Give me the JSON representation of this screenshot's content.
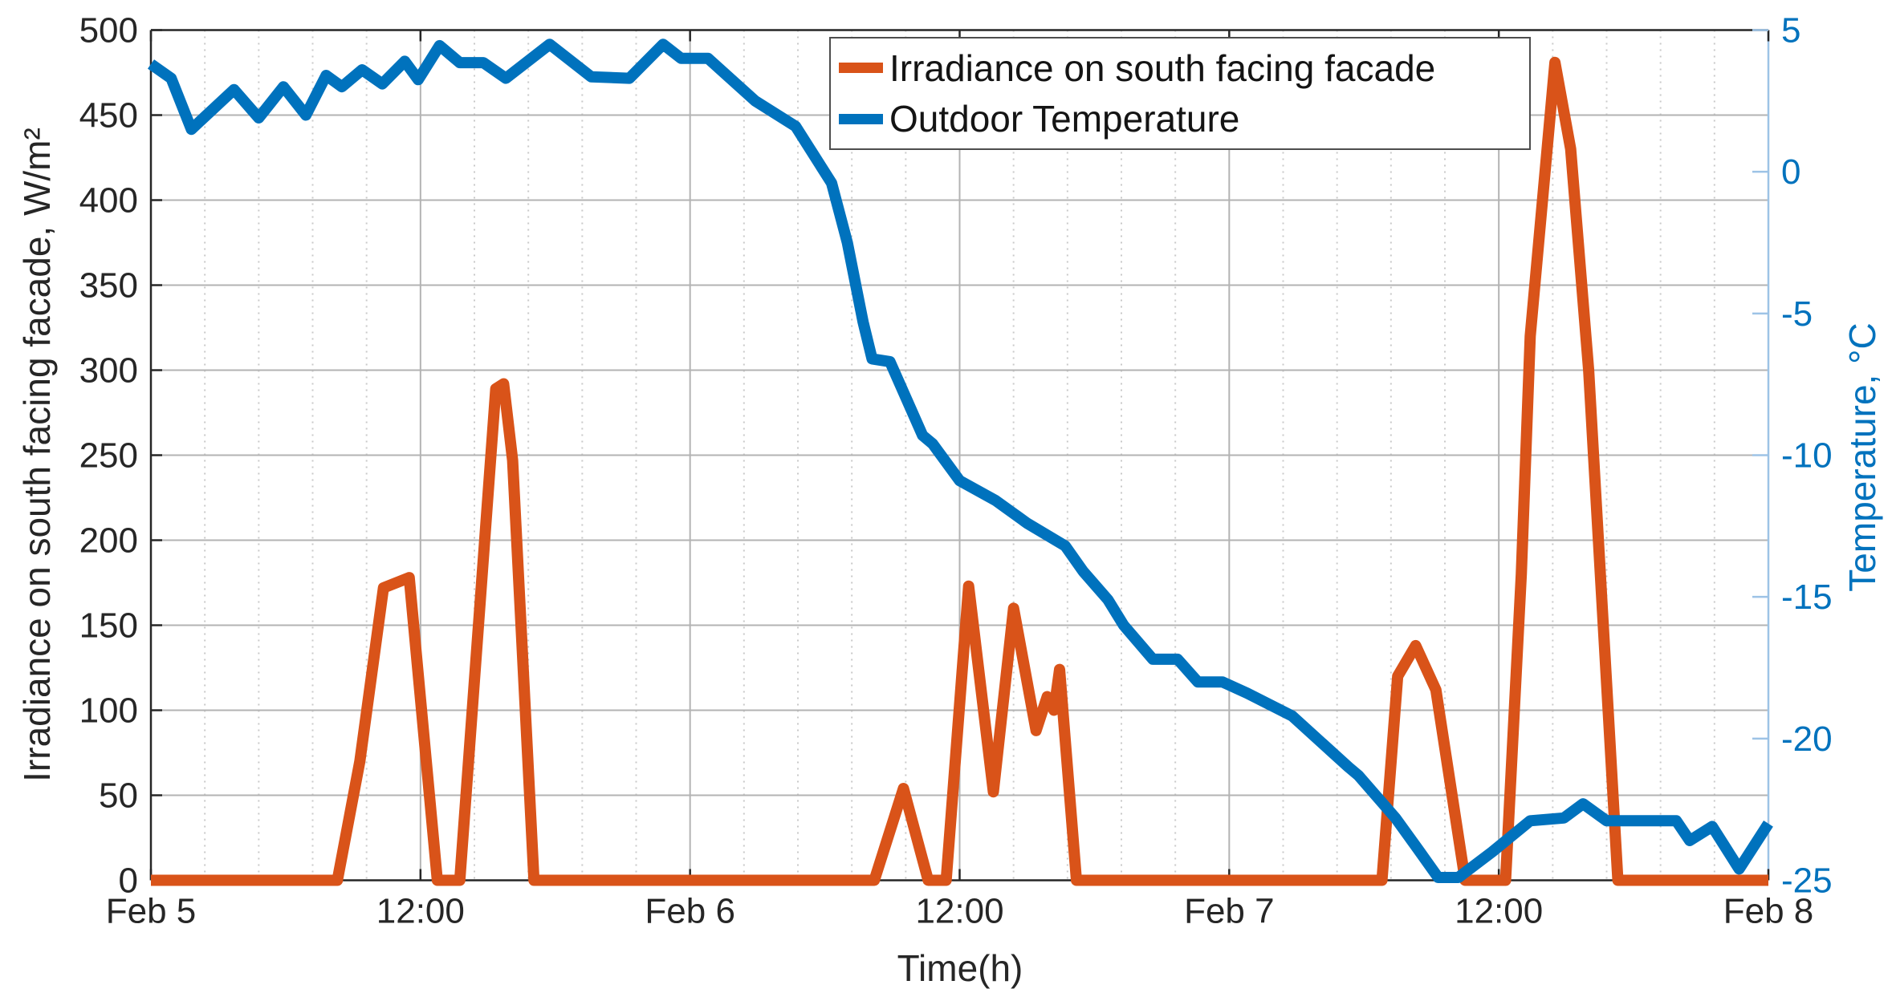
{
  "chart_data": {
    "type": "line",
    "title": "",
    "x_axis": {
      "label": "Time(h)",
      "range_hours": [
        0,
        72
      ],
      "tick_labels": [
        {
          "t": 0,
          "label": "Feb 5"
        },
        {
          "t": 12,
          "label": "12:00"
        },
        {
          "t": 24,
          "label": "Feb 6"
        },
        {
          "t": 36,
          "label": "12:00"
        },
        {
          "t": 48,
          "label": "Feb 7"
        },
        {
          "t": 60,
          "label": "12:00"
        },
        {
          "t": 72,
          "label": "Feb 8"
        }
      ],
      "minor_grid_step_hours": 2.4
    },
    "left_axis": {
      "label": "Irradiance on south facing facade, W/m²",
      "min": 0,
      "max": 500,
      "tick_step": 50,
      "color": "#262626"
    },
    "right_axis": {
      "label": "Temperature, °C",
      "min": -25,
      "max": 5,
      "tick_step": 5,
      "label_color": "#0072BD",
      "spine_color": "#9dc3e6"
    },
    "grid": {
      "major_color": "#b3b3b3",
      "minor_color": "#c9c9c9",
      "spine_color": "#262626"
    },
    "legend": {
      "position": "top-center",
      "border_color": "#4d4d4d"
    },
    "series": [
      {
        "name": "Irradiance on south facing facade",
        "axis": "left",
        "unit": "W/m²",
        "color": "#D95319",
        "points": [
          [
            0,
            0
          ],
          [
            8.3,
            0
          ],
          [
            9.3,
            70
          ],
          [
            10.35,
            172
          ],
          [
            11.5,
            178
          ],
          [
            12.75,
            0
          ],
          [
            13.75,
            0
          ],
          [
            15.35,
            289
          ],
          [
            15.7,
            292
          ],
          [
            16.1,
            247
          ],
          [
            17.05,
            0
          ],
          [
            32.2,
            0
          ],
          [
            33.5,
            54
          ],
          [
            34.6,
            0
          ],
          [
            35.4,
            0
          ],
          [
            36.4,
            173
          ],
          [
            37.5,
            52
          ],
          [
            38.4,
            160
          ],
          [
            39.4,
            88
          ],
          [
            39.9,
            108
          ],
          [
            40.2,
            100
          ],
          [
            40.45,
            124
          ],
          [
            41.2,
            0
          ],
          [
            54.8,
            0
          ],
          [
            55.5,
            120
          ],
          [
            56.3,
            138
          ],
          [
            57.2,
            112
          ],
          [
            58.5,
            0
          ],
          [
            60.3,
            0
          ],
          [
            61.0,
            180
          ],
          [
            61.4,
            320
          ],
          [
            62.5,
            481
          ],
          [
            63.2,
            430
          ],
          [
            64.0,
            300
          ],
          [
            65.3,
            0
          ],
          [
            72,
            0
          ]
        ]
      },
      {
        "name": "Outdoor Temperature",
        "axis": "right",
        "unit": "°C",
        "color": "#0072BD",
        "points": [
          [
            0,
            3.8
          ],
          [
            0.9,
            3.3
          ],
          [
            1.8,
            1.5
          ],
          [
            3.7,
            2.9
          ],
          [
            4.8,
            1.9
          ],
          [
            5.9,
            3.0
          ],
          [
            6.9,
            2.0
          ],
          [
            7.8,
            3.4
          ],
          [
            8.5,
            3.0
          ],
          [
            9.4,
            3.6
          ],
          [
            10.3,
            3.1
          ],
          [
            11.3,
            3.9
          ],
          [
            11.9,
            3.25
          ],
          [
            12.85,
            4.45
          ],
          [
            13.75,
            3.85
          ],
          [
            14.8,
            3.85
          ],
          [
            15.8,
            3.3
          ],
          [
            17.75,
            4.5
          ],
          [
            19.6,
            3.35
          ],
          [
            21.3,
            3.3
          ],
          [
            22.8,
            4.5
          ],
          [
            23.6,
            4.0
          ],
          [
            24.8,
            4.0
          ],
          [
            26.9,
            2.5
          ],
          [
            28.7,
            1.6
          ],
          [
            30.3,
            -0.4
          ],
          [
            31.0,
            -2.5
          ],
          [
            31.7,
            -5.3
          ],
          [
            32.1,
            -6.6
          ],
          [
            32.9,
            -6.7
          ],
          [
            34.35,
            -9.3
          ],
          [
            34.8,
            -9.6
          ],
          [
            36.0,
            -10.9
          ],
          [
            37.6,
            -11.6
          ],
          [
            39.0,
            -12.4
          ],
          [
            40.7,
            -13.2
          ],
          [
            41.5,
            -14.1
          ],
          [
            42.6,
            -15.1
          ],
          [
            43.3,
            -16.0
          ],
          [
            44.6,
            -17.2
          ],
          [
            45.7,
            -17.2
          ],
          [
            46.6,
            -18.0
          ],
          [
            47.7,
            -18.0
          ],
          [
            48.8,
            -18.4
          ],
          [
            50.8,
            -19.2
          ],
          [
            53.3,
            -21.0
          ],
          [
            53.75,
            -21.3
          ],
          [
            55.4,
            -22.8
          ],
          [
            56.4,
            -23.9
          ],
          [
            57.3,
            -24.9
          ],
          [
            58.2,
            -24.9
          ],
          [
            59.7,
            -24.0
          ],
          [
            61.4,
            -22.9
          ],
          [
            62.9,
            -22.8
          ],
          [
            63.75,
            -22.3
          ],
          [
            64.8,
            -22.9
          ],
          [
            67.9,
            -22.9
          ],
          [
            68.5,
            -23.6
          ],
          [
            69.5,
            -23.1
          ],
          [
            70.7,
            -24.6
          ],
          [
            72,
            -23.0
          ]
        ]
      }
    ]
  }
}
